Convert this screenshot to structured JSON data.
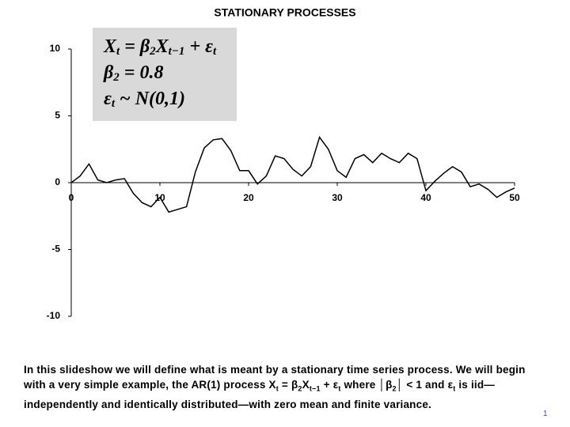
{
  "chart_data": {
    "type": "line",
    "title": "STATIONARY PROCESSES",
    "x": [
      0,
      1,
      2,
      3,
      4,
      5,
      6,
      7,
      8,
      9,
      10,
      11,
      12,
      13,
      14,
      15,
      16,
      17,
      18,
      19,
      20,
      21,
      22,
      23,
      24,
      25,
      26,
      27,
      28,
      29,
      30,
      31,
      32,
      33,
      34,
      35,
      36,
      37,
      38,
      39,
      40,
      41,
      42,
      43,
      44,
      45,
      46,
      47,
      48,
      49,
      50
    ],
    "values": [
      0,
      0.5,
      1.4,
      0.2,
      0.0,
      0.2,
      0.3,
      -0.8,
      -1.5,
      -1.8,
      -1.1,
      -2.2,
      -2.0,
      -1.8,
      0.8,
      2.6,
      3.2,
      3.3,
      2.4,
      0.9,
      0.9,
      -0.1,
      0.5,
      2.0,
      1.8,
      1.0,
      0.5,
      1.2,
      3.4,
      2.5,
      0.9,
      0.4,
      1.8,
      2.1,
      1.5,
      2.2,
      1.8,
      1.5,
      2.2,
      1.8,
      -0.6,
      0.1,
      0.7,
      1.2,
      0.8,
      -0.3,
      -0.1,
      -0.5,
      -1.1,
      -0.7,
      -0.4
    ],
    "color": "#000000",
    "xlim": [
      0,
      50
    ],
    "xticks": [
      0,
      10,
      20,
      30,
      40,
      50
    ],
    "ylim": [
      -10,
      10
    ],
    "yticks": [
      -10,
      -5,
      0,
      5,
      10
    ],
    "grid": false,
    "equation": [
      [
        "X",
        "t",
        " = β",
        "2",
        "X",
        "t−1",
        " + ε",
        "t"
      ],
      [
        "β",
        "2",
        " = 0.8"
      ],
      [
        "ε",
        "t",
        " ~ N(0,1)"
      ]
    ]
  },
  "caption": [
    "In this slideshow we will define what is meant by a stationary time series process.  We will begin with a very simple example, the AR(1) process X",
    "t",
    " = β",
    "2",
    "X",
    "t−1",
    " + ε",
    "t",
    " where │β",
    "2",
    "│ < 1 and ε",
    "t",
    " is iid—independently and identically distributed—with zero mean and finite variance."
  ],
  "page_number": "1"
}
